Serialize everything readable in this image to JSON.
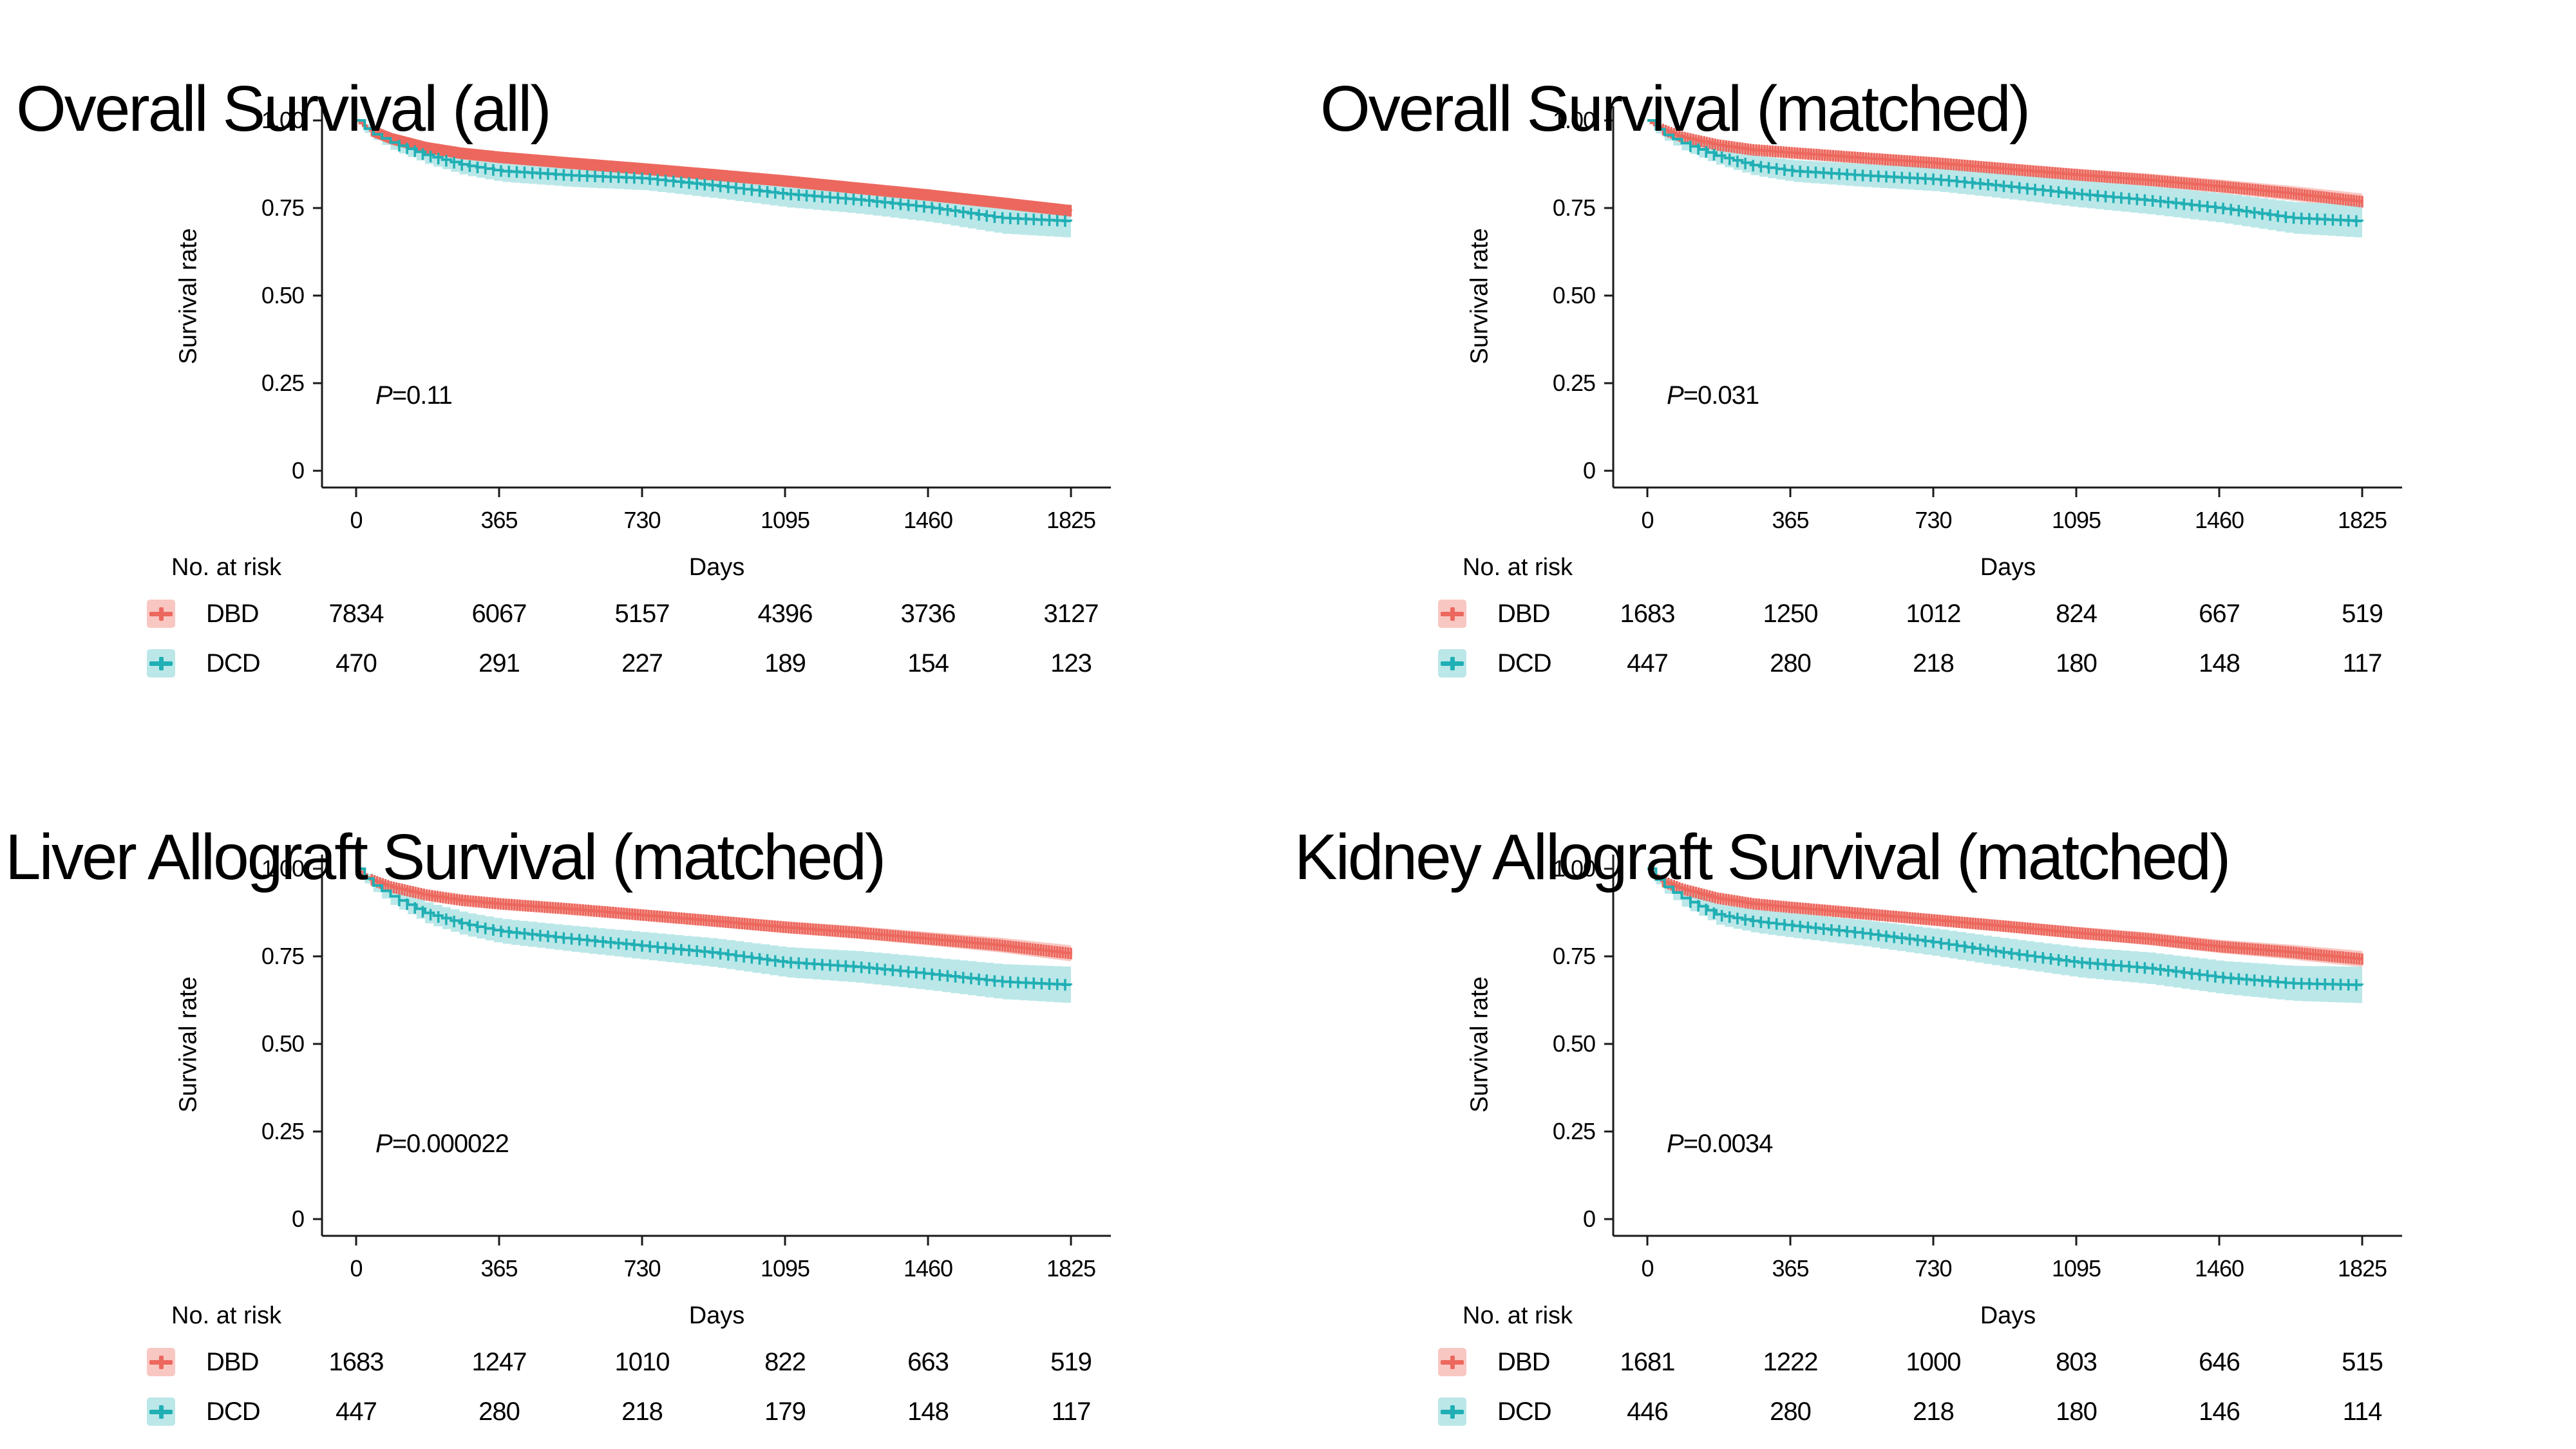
{
  "colors": {
    "dbd_line": "#EC685E",
    "dbd_band": "#F9C7C2",
    "dcd_line": "#20AFB4",
    "dcd_band": "#BBE7E8",
    "axis": "#1a1a1a",
    "text": "#000000",
    "background": "#ffffff"
  },
  "labels": {
    "ylabel": "Survival rate",
    "xlabel": "Days",
    "risk_header": "No. at risk"
  },
  "panels": [
    {
      "title": "Overall Survival (all)",
      "p_prefix": "P",
      "p_rest": "=0.11"
    },
    {
      "title": "Overall Survival (matched)",
      "p_prefix": "P",
      "p_rest": "=0.031"
    },
    {
      "title": "Liver Allograft Survival (matched)",
      "p_prefix": "P",
      "p_rest": "=0.000022"
    },
    {
      "title": "Kidney Allograft Survival (matched)",
      "p_prefix": "P",
      "p_rest": "=0.0034"
    }
  ],
  "chart_data": [
    {
      "type": "line",
      "chart_kind": "kaplan-meier-step-curves-with-ci-bands-and-censor-ticks",
      "title": "Overall Survival (all)",
      "p_value": "P=0.11",
      "xlabel": "Days",
      "ylabel": "Survival rate",
      "xlim": [
        0,
        1825
      ],
      "ylim": [
        0,
        1.0
      ],
      "xticks": [
        0,
        365,
        730,
        1095,
        1460,
        1825
      ],
      "yticks": [
        0,
        0.25,
        0.5,
        0.75,
        1.0
      ],
      "ytick_labels": [
        "0",
        "0.25",
        "0.50",
        "0.75",
        "1.00"
      ],
      "grid": false,
      "legend_position": "risk-table-left",
      "series": [
        {
          "name": "DBD",
          "color_role": "dbd",
          "x": [
            0,
            30,
            90,
            180,
            270,
            365,
            548,
            730,
            912,
            1095,
            1277,
            1460,
            1642,
            1825
          ],
          "y": [
            1.0,
            0.975,
            0.948,
            0.922,
            0.906,
            0.895,
            0.878,
            0.862,
            0.845,
            0.827,
            0.807,
            0.787,
            0.765,
            0.742
          ],
          "ci_halfwidth": [
            0.003,
            0.004,
            0.004,
            0.005,
            0.005,
            0.006,
            0.006,
            0.007,
            0.007,
            0.008,
            0.009,
            0.01,
            0.011,
            0.013
          ]
        },
        {
          "name": "DCD",
          "color_role": "dcd",
          "x": [
            0,
            30,
            90,
            180,
            270,
            365,
            548,
            730,
            912,
            1095,
            1277,
            1460,
            1642,
            1825
          ],
          "y": [
            1.0,
            0.968,
            0.936,
            0.9,
            0.873,
            0.856,
            0.843,
            0.835,
            0.814,
            0.79,
            0.774,
            0.752,
            0.722,
            0.712
          ],
          "ci_halfwidth": [
            0.005,
            0.015,
            0.021,
            0.026,
            0.029,
            0.031,
            0.033,
            0.034,
            0.036,
            0.038,
            0.04,
            0.042,
            0.045,
            0.047
          ]
        }
      ],
      "risk_table": {
        "header": "No. at risk",
        "time_points": [
          0,
          365,
          730,
          1095,
          1460,
          1825
        ],
        "rows": [
          {
            "group": "DBD",
            "values": [
              7834,
              6067,
              5157,
              4396,
              3736,
              3127
            ]
          },
          {
            "group": "DCD",
            "values": [
              470,
              291,
              227,
              189,
              154,
              123
            ]
          }
        ]
      }
    },
    {
      "type": "line",
      "chart_kind": "kaplan-meier-step-curves-with-ci-bands-and-censor-ticks",
      "title": "Overall Survival (matched)",
      "p_value": "P=0.031",
      "xlabel": "Days",
      "ylabel": "Survival rate",
      "xlim": [
        0,
        1825
      ],
      "ylim": [
        0,
        1.0
      ],
      "xticks": [
        0,
        365,
        730,
        1095,
        1460,
        1825
      ],
      "yticks": [
        0,
        0.25,
        0.5,
        0.75,
        1.0
      ],
      "ytick_labels": [
        "0",
        "0.25",
        "0.50",
        "0.75",
        "1.00"
      ],
      "grid": false,
      "legend_position": "risk-table-left",
      "series": [
        {
          "name": "DBD",
          "color_role": "dbd",
          "x": [
            0,
            30,
            90,
            180,
            270,
            365,
            548,
            730,
            912,
            1095,
            1277,
            1460,
            1642,
            1825
          ],
          "y": [
            1.0,
            0.978,
            0.952,
            0.93,
            0.916,
            0.908,
            0.893,
            0.879,
            0.862,
            0.845,
            0.83,
            0.812,
            0.792,
            0.768
          ],
          "ci_halfwidth": [
            0.004,
            0.007,
            0.009,
            0.011,
            0.012,
            0.013,
            0.014,
            0.015,
            0.016,
            0.017,
            0.018,
            0.019,
            0.021,
            0.023
          ]
        },
        {
          "name": "DCD",
          "color_role": "dcd",
          "x": [
            0,
            30,
            90,
            180,
            270,
            365,
            548,
            730,
            912,
            1095,
            1277,
            1460,
            1642,
            1825
          ],
          "y": [
            1.0,
            0.966,
            0.934,
            0.898,
            0.871,
            0.856,
            0.843,
            0.832,
            0.812,
            0.79,
            0.772,
            0.75,
            0.722,
            0.712
          ],
          "ci_halfwidth": [
            0.005,
            0.015,
            0.021,
            0.026,
            0.029,
            0.031,
            0.033,
            0.034,
            0.036,
            0.038,
            0.04,
            0.042,
            0.045,
            0.047
          ]
        }
      ],
      "risk_table": {
        "header": "No. at risk",
        "time_points": [
          0,
          365,
          730,
          1095,
          1460,
          1825
        ],
        "rows": [
          {
            "group": "DBD",
            "values": [
              1683,
              1250,
              1012,
              824,
              667,
              519
            ]
          },
          {
            "group": "DCD",
            "values": [
              447,
              280,
              218,
              180,
              148,
              117
            ]
          }
        ]
      }
    },
    {
      "type": "line",
      "chart_kind": "kaplan-meier-step-curves-with-ci-bands-and-censor-ticks",
      "title": "Liver Allograft Survival (matched)",
      "p_value": "P=0.000022",
      "xlabel": "Days",
      "ylabel": "Survival rate",
      "xlim": [
        0,
        1825
      ],
      "ylim": [
        0,
        1.0
      ],
      "xticks": [
        0,
        365,
        730,
        1095,
        1460,
        1825
      ],
      "yticks": [
        0,
        0.25,
        0.5,
        0.75,
        1.0
      ],
      "ytick_labels": [
        "0",
        "0.25",
        "0.50",
        "0.75",
        "1.00"
      ],
      "grid": false,
      "legend_position": "risk-table-left",
      "series": [
        {
          "name": "DBD",
          "color_role": "dbd",
          "x": [
            0,
            30,
            90,
            180,
            270,
            365,
            548,
            730,
            912,
            1095,
            1277,
            1460,
            1642,
            1825
          ],
          "y": [
            1.0,
            0.972,
            0.948,
            0.925,
            0.91,
            0.9,
            0.885,
            0.868,
            0.851,
            0.833,
            0.818,
            0.8,
            0.782,
            0.758
          ],
          "ci_halfwidth": [
            0.004,
            0.007,
            0.009,
            0.011,
            0.012,
            0.013,
            0.014,
            0.015,
            0.016,
            0.017,
            0.018,
            0.019,
            0.021,
            0.023
          ]
        },
        {
          "name": "DCD",
          "color_role": "dcd",
          "x": [
            0,
            30,
            90,
            180,
            270,
            365,
            548,
            730,
            912,
            1095,
            1277,
            1460,
            1642,
            1825
          ],
          "y": [
            1.0,
            0.962,
            0.92,
            0.872,
            0.843,
            0.822,
            0.8,
            0.78,
            0.76,
            0.733,
            0.72,
            0.7,
            0.678,
            0.668
          ],
          "ci_halfwidth": [
            0.005,
            0.017,
            0.025,
            0.03,
            0.033,
            0.035,
            0.037,
            0.039,
            0.041,
            0.043,
            0.045,
            0.047,
            0.05,
            0.052
          ]
        }
      ],
      "risk_table": {
        "header": "No. at risk",
        "time_points": [
          0,
          365,
          730,
          1095,
          1460,
          1825
        ],
        "rows": [
          {
            "group": "DBD",
            "values": [
              1683,
              1247,
              1010,
              822,
              663,
              519
            ]
          },
          {
            "group": "DCD",
            "values": [
              447,
              280,
              218,
              179,
              148,
              117
            ]
          }
        ]
      }
    },
    {
      "type": "line",
      "chart_kind": "kaplan-meier-step-curves-with-ci-bands-and-censor-ticks",
      "title": "Kidney Allograft Survival (matched)",
      "p_value": "P=0.0034",
      "xlabel": "Days",
      "ylabel": "Survival rate",
      "xlim": [
        0,
        1825
      ],
      "ylim": [
        0,
        1.0
      ],
      "xticks": [
        0,
        365,
        730,
        1095,
        1460,
        1825
      ],
      "yticks": [
        0,
        0.25,
        0.5,
        0.75,
        1.0
      ],
      "ytick_labels": [
        "0",
        "0.25",
        "0.50",
        "0.75",
        "1.00"
      ],
      "grid": false,
      "legend_position": "risk-table-left",
      "series": [
        {
          "name": "DBD",
          "color_role": "dbd",
          "x": [
            0,
            30,
            90,
            180,
            270,
            365,
            548,
            730,
            912,
            1095,
            1277,
            1460,
            1642,
            1825
          ],
          "y": [
            1.0,
            0.968,
            0.942,
            0.916,
            0.9,
            0.89,
            0.872,
            0.854,
            0.836,
            0.817,
            0.8,
            0.778,
            0.762,
            0.742
          ],
          "ci_halfwidth": [
            0.004,
            0.007,
            0.009,
            0.011,
            0.012,
            0.013,
            0.014,
            0.015,
            0.016,
            0.017,
            0.018,
            0.019,
            0.021,
            0.023
          ]
        },
        {
          "name": "DCD",
          "color_role": "dcd",
          "x": [
            0,
            30,
            90,
            180,
            270,
            365,
            548,
            730,
            912,
            1095,
            1277,
            1460,
            1642,
            1825
          ],
          "y": [
            1.0,
            0.958,
            0.915,
            0.868,
            0.85,
            0.838,
            0.816,
            0.79,
            0.76,
            0.733,
            0.716,
            0.69,
            0.673,
            0.668
          ],
          "ci_halfwidth": [
            0.005,
            0.017,
            0.025,
            0.03,
            0.033,
            0.035,
            0.037,
            0.039,
            0.041,
            0.043,
            0.045,
            0.047,
            0.05,
            0.052
          ]
        }
      ],
      "risk_table": {
        "header": "No. at risk",
        "time_points": [
          0,
          365,
          730,
          1095,
          1460,
          1825
        ],
        "rows": [
          {
            "group": "DBD",
            "values": [
              1681,
              1222,
              1000,
              803,
              646,
              515
            ]
          },
          {
            "group": "DCD",
            "values": [
              446,
              280,
              218,
              180,
              146,
              114
            ]
          }
        ]
      }
    }
  ]
}
